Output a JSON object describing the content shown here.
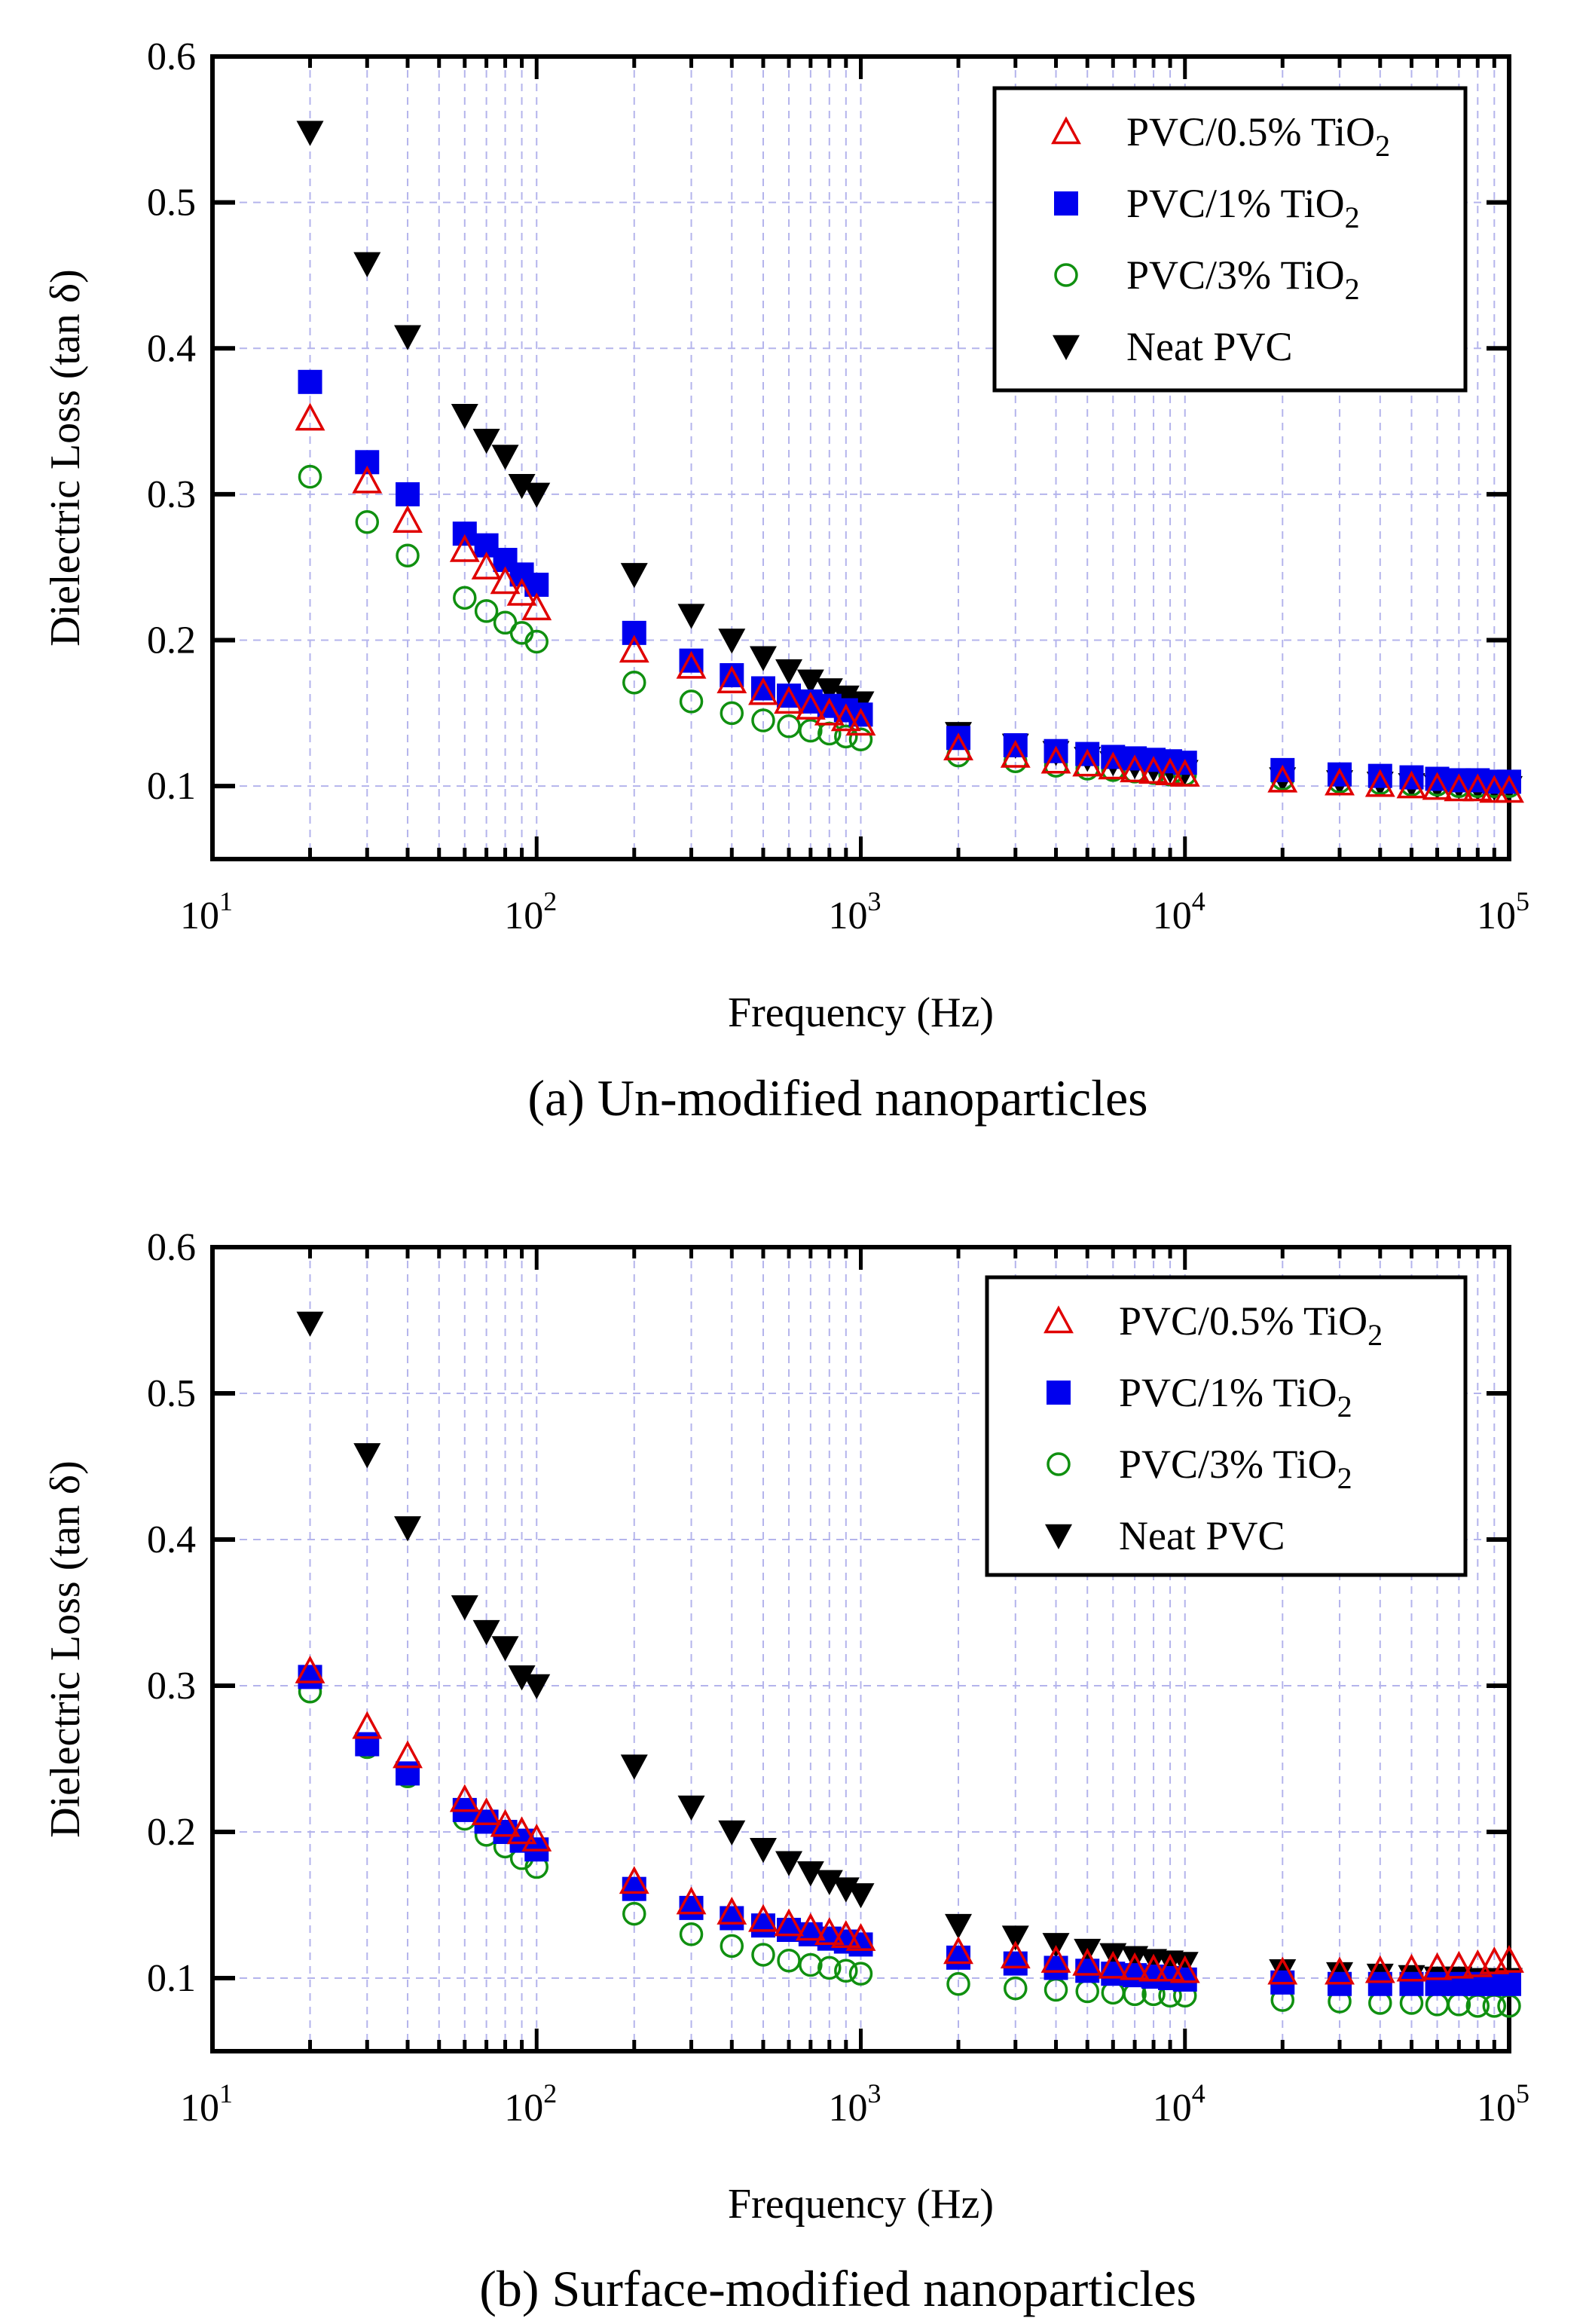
{
  "chart_data": [
    {
      "type": "scatter",
      "panel": "a",
      "caption": "(a) Un-modified nanoparticles",
      "xlabel": "Frequency (Hz)",
      "ylabel": "Dielectric Loss (tan δ)",
      "xscale": "log",
      "xlim": [
        10,
        100000
      ],
      "ylim": [
        0.05,
        0.6
      ],
      "yticks": [
        "0.1",
        "0.2",
        "0.3",
        "0.4",
        "0.5",
        "0.6"
      ],
      "xticks": [
        {
          "base": "10",
          "exp": "1"
        },
        {
          "base": "10",
          "exp": "2"
        },
        {
          "base": "10",
          "exp": "3"
        },
        {
          "base": "10",
          "exp": "4"
        },
        {
          "base": "10",
          "exp": "5"
        }
      ],
      "grid": true,
      "legend_position": "top-right",
      "x": [
        20,
        30,
        40,
        60,
        70,
        80,
        90,
        100,
        200,
        300,
        400,
        500,
        600,
        700,
        800,
        900,
        1000,
        2000,
        3000,
        4000,
        5000,
        6000,
        7000,
        8000,
        9000,
        10000,
        20000,
        30000,
        40000,
        50000,
        60000,
        70000,
        80000,
        90000,
        100000
      ],
      "series": [
        {
          "name": "PVC/0.5% TiO2",
          "label_main": "PVC/0.5% TiO",
          "label_sub": "2",
          "marker": "triangle-up-open",
          "color": "#e00000",
          "values": [
            0.352,
            0.309,
            0.282,
            0.262,
            0.25,
            0.24,
            0.232,
            0.222,
            0.193,
            0.182,
            0.172,
            0.164,
            0.158,
            0.154,
            0.15,
            0.146,
            0.143,
            0.126,
            0.121,
            0.117,
            0.115,
            0.113,
            0.111,
            0.11,
            0.109,
            0.108,
            0.104,
            0.102,
            0.101,
            0.1,
            0.099,
            0.098,
            0.098,
            0.097,
            0.097
          ]
        },
        {
          "name": "PVC/1% TiO2",
          "label_main": "PVC/1% TiO",
          "label_sub": "2",
          "marker": "square-filled",
          "color": "#0000ee",
          "values": [
            0.377,
            0.322,
            0.3,
            0.273,
            0.265,
            0.255,
            0.245,
            0.238,
            0.205,
            0.186,
            0.176,
            0.167,
            0.162,
            0.158,
            0.155,
            0.152,
            0.149,
            0.133,
            0.128,
            0.124,
            0.122,
            0.12,
            0.119,
            0.118,
            0.117,
            0.116,
            0.111,
            0.108,
            0.107,
            0.106,
            0.105,
            0.104,
            0.104,
            0.103,
            0.103
          ]
        },
        {
          "name": "PVC/3% TiO2",
          "label_main": "PVC/3% TiO",
          "label_sub": "2",
          "marker": "circle-open",
          "color": "#109010",
          "values": [
            0.312,
            0.281,
            0.258,
            0.229,
            0.22,
            0.212,
            0.205,
            0.199,
            0.171,
            0.158,
            0.15,
            0.145,
            0.141,
            0.138,
            0.136,
            0.134,
            0.132,
            0.121,
            0.117,
            0.114,
            0.112,
            0.111,
            0.11,
            0.109,
            0.108,
            0.108,
            0.105,
            0.103,
            0.102,
            0.101,
            0.101,
            0.1,
            0.1,
            0.1,
            0.1
          ]
        },
        {
          "name": "Neat PVC",
          "label_main": "Neat PVC",
          "label_sub": "",
          "marker": "triangle-down-filled",
          "color": "#000000",
          "values": [
            0.548,
            0.458,
            0.408,
            0.354,
            0.337,
            0.326,
            0.306,
            0.3,
            0.245,
            0.217,
            0.2,
            0.188,
            0.179,
            0.172,
            0.166,
            0.161,
            0.157,
            0.136,
            0.128,
            0.123,
            0.119,
            0.116,
            0.114,
            0.112,
            0.111,
            0.11,
            0.105,
            0.103,
            0.102,
            0.101,
            0.1,
            0.1,
            0.099,
            0.099,
            0.099
          ]
        }
      ]
    },
    {
      "type": "scatter",
      "panel": "b",
      "caption": "(b) Surface-modified nanoparticles",
      "xlabel": "Frequency (Hz)",
      "ylabel": "Dielectric Loss (tan δ)",
      "xscale": "log",
      "xlim": [
        10,
        100000
      ],
      "ylim": [
        0.05,
        0.6
      ],
      "yticks": [
        "0.1",
        "0.2",
        "0.3",
        "0.4",
        "0.5",
        "0.6"
      ],
      "xticks": [
        {
          "base": "10",
          "exp": "1"
        },
        {
          "base": "10",
          "exp": "2"
        },
        {
          "base": "10",
          "exp": "3"
        },
        {
          "base": "10",
          "exp": "4"
        },
        {
          "base": "10",
          "exp": "5"
        }
      ],
      "grid": true,
      "legend_position": "top-right",
      "x": [
        20,
        30,
        40,
        60,
        70,
        80,
        90,
        100,
        200,
        300,
        400,
        500,
        600,
        700,
        800,
        900,
        1000,
        2000,
        3000,
        4000,
        5000,
        6000,
        7000,
        8000,
        9000,
        10000,
        20000,
        30000,
        40000,
        50000,
        60000,
        70000,
        80000,
        90000,
        100000
      ],
      "series": [
        {
          "name": "PVC/0.5% TiO2",
          "label_main": "PVC/0.5% TiO",
          "label_sub": "2",
          "marker": "triangle-up-open",
          "color": "#e00000",
          "values": [
            0.31,
            0.272,
            0.252,
            0.222,
            0.213,
            0.205,
            0.2,
            0.195,
            0.166,
            0.152,
            0.145,
            0.14,
            0.137,
            0.134,
            0.131,
            0.129,
            0.127,
            0.118,
            0.115,
            0.112,
            0.11,
            0.108,
            0.107,
            0.106,
            0.106,
            0.105,
            0.104,
            0.104,
            0.105,
            0.106,
            0.107,
            0.108,
            0.109,
            0.111,
            0.112
          ]
        },
        {
          "name": "PVC/1% TiO2",
          "label_main": "PVC/1% TiO",
          "label_sub": "2",
          "marker": "square-filled",
          "color": "#0000ee",
          "values": [
            0.306,
            0.26,
            0.24,
            0.215,
            0.207,
            0.2,
            0.194,
            0.188,
            0.161,
            0.148,
            0.141,
            0.136,
            0.133,
            0.13,
            0.127,
            0.125,
            0.123,
            0.114,
            0.11,
            0.107,
            0.105,
            0.103,
            0.102,
            0.101,
            0.1,
            0.099,
            0.097,
            0.096,
            0.096,
            0.096,
            0.096,
            0.096,
            0.096,
            0.096,
            0.096
          ]
        },
        {
          "name": "PVC/3% TiO2",
          "label_main": "PVC/3% TiO",
          "label_sub": "2",
          "marker": "circle-open",
          "color": "#109010",
          "values": [
            0.296,
            0.258,
            0.238,
            0.209,
            0.198,
            0.19,
            0.182,
            0.176,
            0.144,
            0.13,
            0.122,
            0.116,
            0.112,
            0.109,
            0.107,
            0.105,
            0.103,
            0.096,
            0.093,
            0.092,
            0.091,
            0.09,
            0.089,
            0.089,
            0.088,
            0.088,
            0.085,
            0.084,
            0.083,
            0.083,
            0.082,
            0.082,
            0.081,
            0.081,
            0.081
          ]
        },
        {
          "name": "Neat PVC",
          "label_main": "Neat PVC",
          "label_sub": "",
          "marker": "triangle-down-filled",
          "color": "#000000",
          "values": [
            0.548,
            0.458,
            0.408,
            0.354,
            0.337,
            0.326,
            0.306,
            0.3,
            0.245,
            0.217,
            0.2,
            0.188,
            0.179,
            0.172,
            0.166,
            0.161,
            0.157,
            0.136,
            0.128,
            0.123,
            0.119,
            0.116,
            0.114,
            0.112,
            0.111,
            0.11,
            0.105,
            0.103,
            0.102,
            0.101,
            0.1,
            0.1,
            0.099,
            0.099,
            0.099
          ]
        }
      ]
    }
  ]
}
